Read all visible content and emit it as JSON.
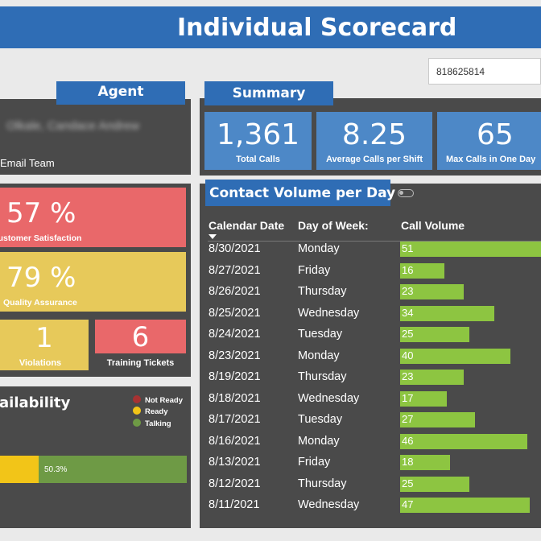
{
  "header": {
    "title": "Individual Scorecard"
  },
  "search": {
    "value": "818625814"
  },
  "agent": {
    "tag": "Agent",
    "name": "Olkale, Candace Andrew",
    "team": "Email Team"
  },
  "metrics": {
    "customer_satisfaction": {
      "value": "57 %",
      "label": "Customer Satisfaction"
    },
    "quality_assurance": {
      "value": "79 %",
      "label": "Quality Assurance"
    },
    "violations": {
      "value": "1",
      "label": "Violations"
    },
    "training_tickets": {
      "value": "6",
      "label": "Training Tickets"
    }
  },
  "availability": {
    "title": "Availability",
    "legend": [
      {
        "label": "Not Ready",
        "color": "#a83232"
      },
      {
        "label": "Ready",
        "color": "#f2c518"
      },
      {
        "label": "Talking",
        "color": "#6e9a45"
      }
    ],
    "talking_pct_label": "50.3%"
  },
  "summary": {
    "tag": "Summary",
    "stats": [
      {
        "value": "1,361",
        "label": "Total Calls"
      },
      {
        "value": "8.25",
        "label": "Average Calls per Shift"
      },
      {
        "value": "65",
        "label": "Max Calls in One Day"
      }
    ]
  },
  "contact_volume": {
    "title": "Contact Volume per Day",
    "columns": [
      "Calendar Date",
      "Day of Week:",
      "Call Volume"
    ],
    "max_visible": 51,
    "rows": [
      {
        "date": "8/30/2021",
        "day": "Monday",
        "volume": 51
      },
      {
        "date": "8/27/2021",
        "day": "Friday",
        "volume": 16
      },
      {
        "date": "8/26/2021",
        "day": "Thursday",
        "volume": 23
      },
      {
        "date": "8/25/2021",
        "day": "Wednesday",
        "volume": 34
      },
      {
        "date": "8/24/2021",
        "day": "Tuesday",
        "volume": 25
      },
      {
        "date": "8/23/2021",
        "day": "Monday",
        "volume": 40
      },
      {
        "date": "8/19/2021",
        "day": "Thursday",
        "volume": 23
      },
      {
        "date": "8/18/2021",
        "day": "Wednesday",
        "volume": 17
      },
      {
        "date": "8/17/2021",
        "day": "Tuesday",
        "volume": 27
      },
      {
        "date": "8/16/2021",
        "day": "Monday",
        "volume": 46
      },
      {
        "date": "8/13/2021",
        "day": "Friday",
        "volume": 18
      },
      {
        "date": "8/12/2021",
        "day": "Thursday",
        "volume": 25
      },
      {
        "date": "8/11/2021",
        "day": "Wednesday",
        "volume": 47
      }
    ]
  }
}
